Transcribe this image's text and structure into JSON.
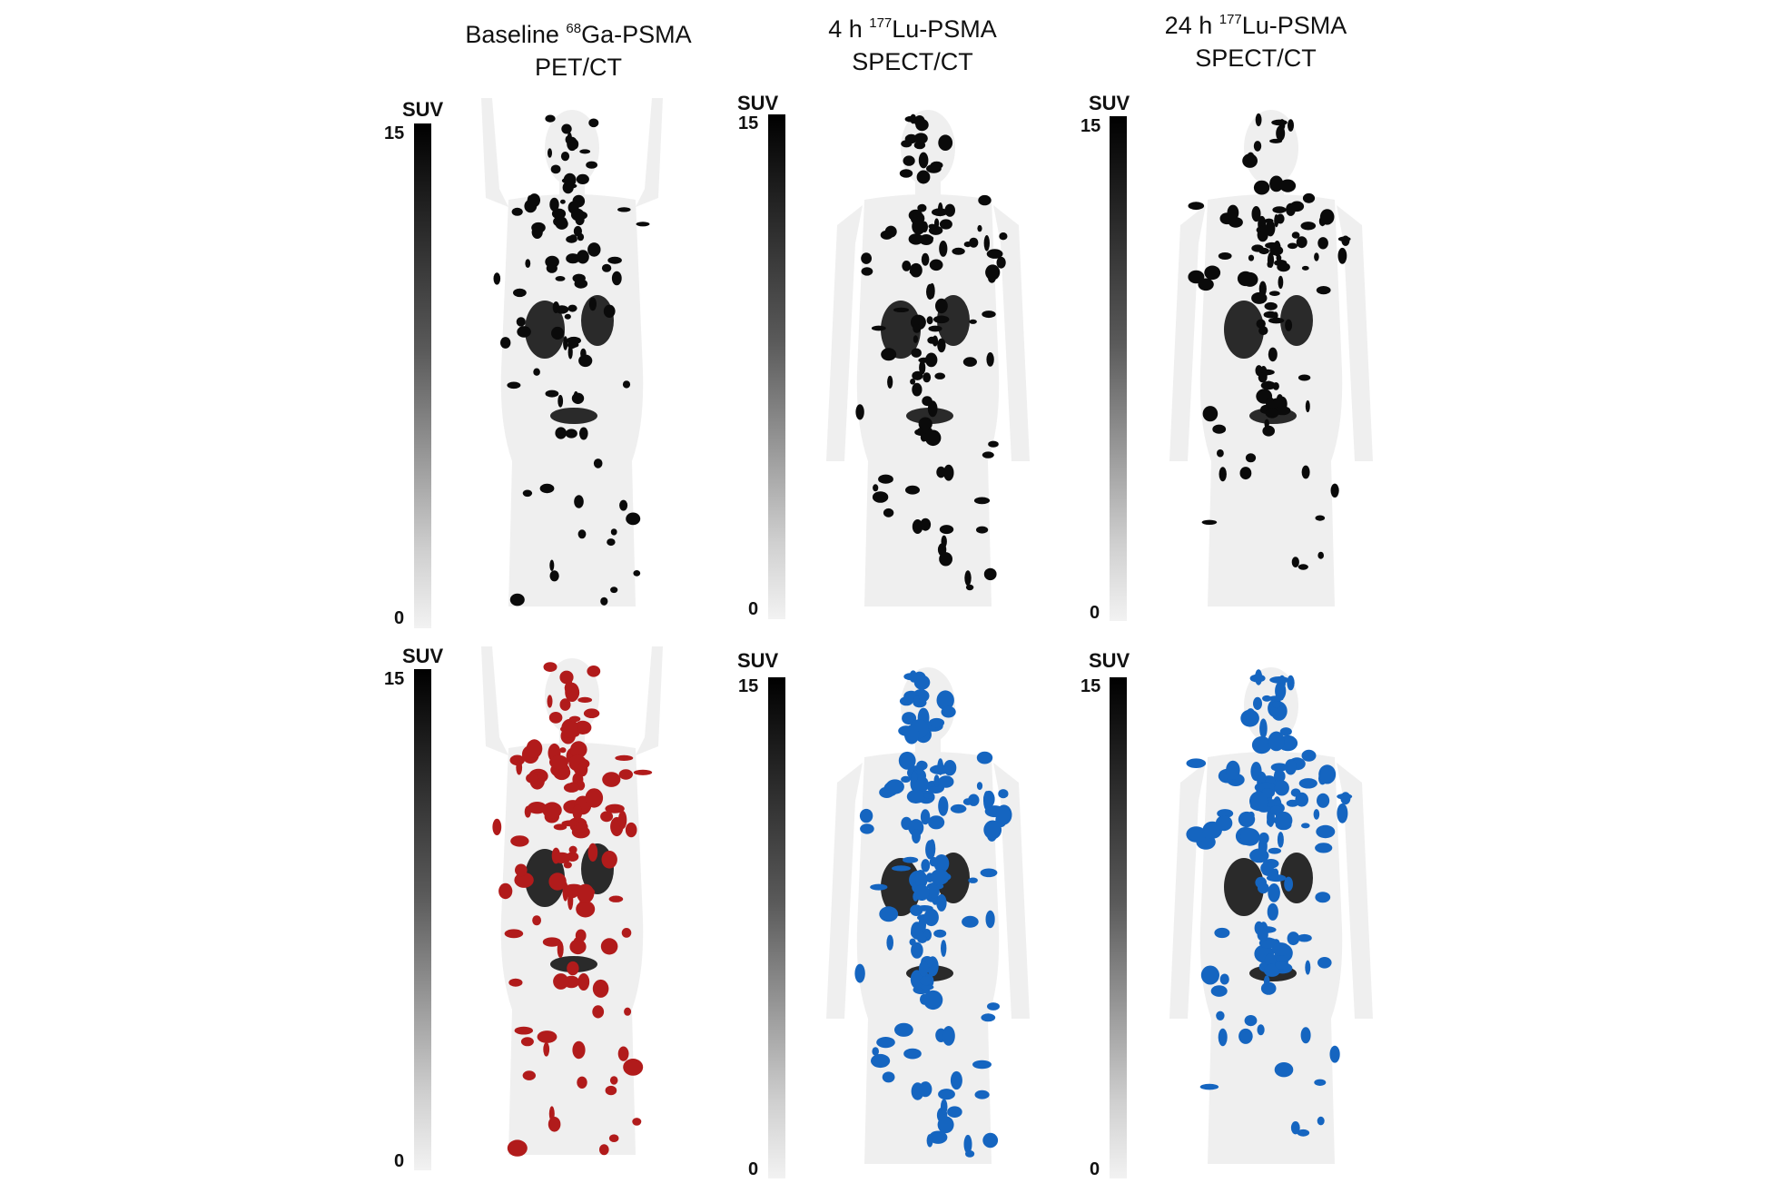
{
  "columns": [
    {
      "title_pre": "Baseline ",
      "title_sup": "68",
      "title_main": "Ga-PSMA",
      "title_line2": "PET/CT"
    },
    {
      "title_pre": "4 h ",
      "title_sup": "177",
      "title_main": "Lu-PSMA",
      "title_line2": "SPECT/CT"
    },
    {
      "title_pre": "24 h ",
      "title_sup": "177",
      "title_main": "Lu-PSMA",
      "title_line2": "SPECT/CT"
    }
  ],
  "scale": {
    "unit": "SUV",
    "max": "15",
    "min": "0"
  },
  "colors": {
    "lesion_pet": "#b11b1b",
    "lesion_spect": "#1565c0",
    "uptake": "#0a0a0a",
    "background": "#ffffff"
  }
}
